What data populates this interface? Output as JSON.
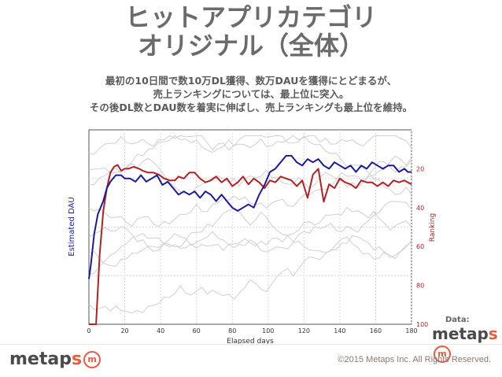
{
  "header": {
    "title_line1": "ヒットアプリカテゴリ",
    "title_line2": "オリジナル（全体）"
  },
  "summary": {
    "line1": "最初の10日間で数10万DL獲得、数万DAUを獲得にとどまるが、",
    "line2": "売上ランキングについては、最上位に突入。",
    "line3": "その後DL数とDAU数を着実に伸ばし、売上ランキングも最上位を維持。"
  },
  "chart_data": {
    "type": "line",
    "xlabel": "Elapsed days",
    "ylabel_left": "Estimated DAU",
    "ylabel_right": "Ranking",
    "xlim": [
      0,
      180
    ],
    "x_ticks": [
      "0",
      "20",
      "40",
      "60",
      "80",
      "100",
      "120",
      "140",
      "160",
      "180"
    ],
    "y_right_lim": [
      100,
      0
    ],
    "y_right_ticks": [
      "20",
      "40",
      "60",
      "80",
      "100"
    ],
    "grid": true,
    "colors": {
      "dau": "#1a1aa0",
      "ranking": "#b22222",
      "background": "#cfcfcf",
      "grid": "#d8d8d8"
    },
    "series": [
      {
        "axis": "right",
        "x": [
          0,
          2,
          4,
          5,
          6,
          8,
          10,
          12,
          14,
          16,
          18,
          20,
          22,
          25,
          28,
          30,
          33,
          36,
          39,
          42,
          45,
          48,
          50,
          53,
          56,
          59,
          62,
          65,
          68,
          71,
          74,
          77,
          80,
          83,
          86,
          89,
          92,
          95,
          98,
          101,
          104,
          107,
          110,
          113,
          116,
          119,
          122,
          125,
          128,
          131,
          134,
          137,
          140,
          143,
          146,
          149,
          152,
          155,
          158,
          161,
          164,
          167,
          170,
          173,
          176,
          180
        ],
        "values": [
          100,
          100,
          100,
          82,
          64,
          42,
          30,
          22,
          19,
          18,
          21,
          20,
          20,
          19,
          20,
          21,
          22,
          22,
          23,
          25,
          26,
          26,
          24,
          25,
          22,
          22,
          25,
          27,
          26,
          24,
          27,
          25,
          29,
          27,
          24,
          28,
          25,
          27,
          30,
          26,
          27,
          24,
          25,
          26,
          29,
          26,
          35,
          23,
          20,
          37,
          28,
          30,
          25,
          27,
          28,
          30,
          26,
          27,
          27,
          29,
          27,
          29,
          26,
          27,
          26,
          28
        ]
      },
      {
        "axis": "left",
        "x": [
          0,
          1,
          3,
          5,
          8,
          10,
          12,
          15,
          18,
          20,
          23,
          26,
          29,
          32,
          35,
          38,
          41,
          44,
          47,
          50,
          53,
          56,
          59,
          62,
          65,
          68,
          71,
          74,
          77,
          80,
          83,
          86,
          89,
          92,
          95,
          98,
          101,
          104,
          107,
          110,
          113,
          116,
          119,
          122,
          125,
          128,
          131,
          134,
          137,
          140,
          143,
          146,
          149,
          152,
          155,
          158,
          161,
          164,
          167,
          170,
          173,
          176,
          178,
          180
        ],
        "values": [
          14,
          18,
          28,
          34,
          38,
          42,
          44,
          46,
          46,
          45,
          45,
          44,
          46,
          44,
          45,
          46,
          43,
          44,
          42,
          40,
          41,
          40,
          41,
          39,
          41,
          40,
          38,
          40,
          38,
          36,
          35,
          36,
          37,
          36,
          40,
          43,
          47,
          48,
          50,
          52,
          52,
          50,
          49,
          51,
          50,
          51,
          49,
          48,
          50,
          49,
          48,
          49,
          47,
          49,
          48,
          50,
          49,
          48,
          49,
          49,
          47,
          48,
          47,
          47
        ]
      }
    ]
  },
  "footer": {
    "data_label": "Data:",
    "logo_text_1": "metap",
    "logo_text_2": "s",
    "logo_badge": "m",
    "copyright": "©2015 Metaps Inc. All Rights Reserved."
  }
}
